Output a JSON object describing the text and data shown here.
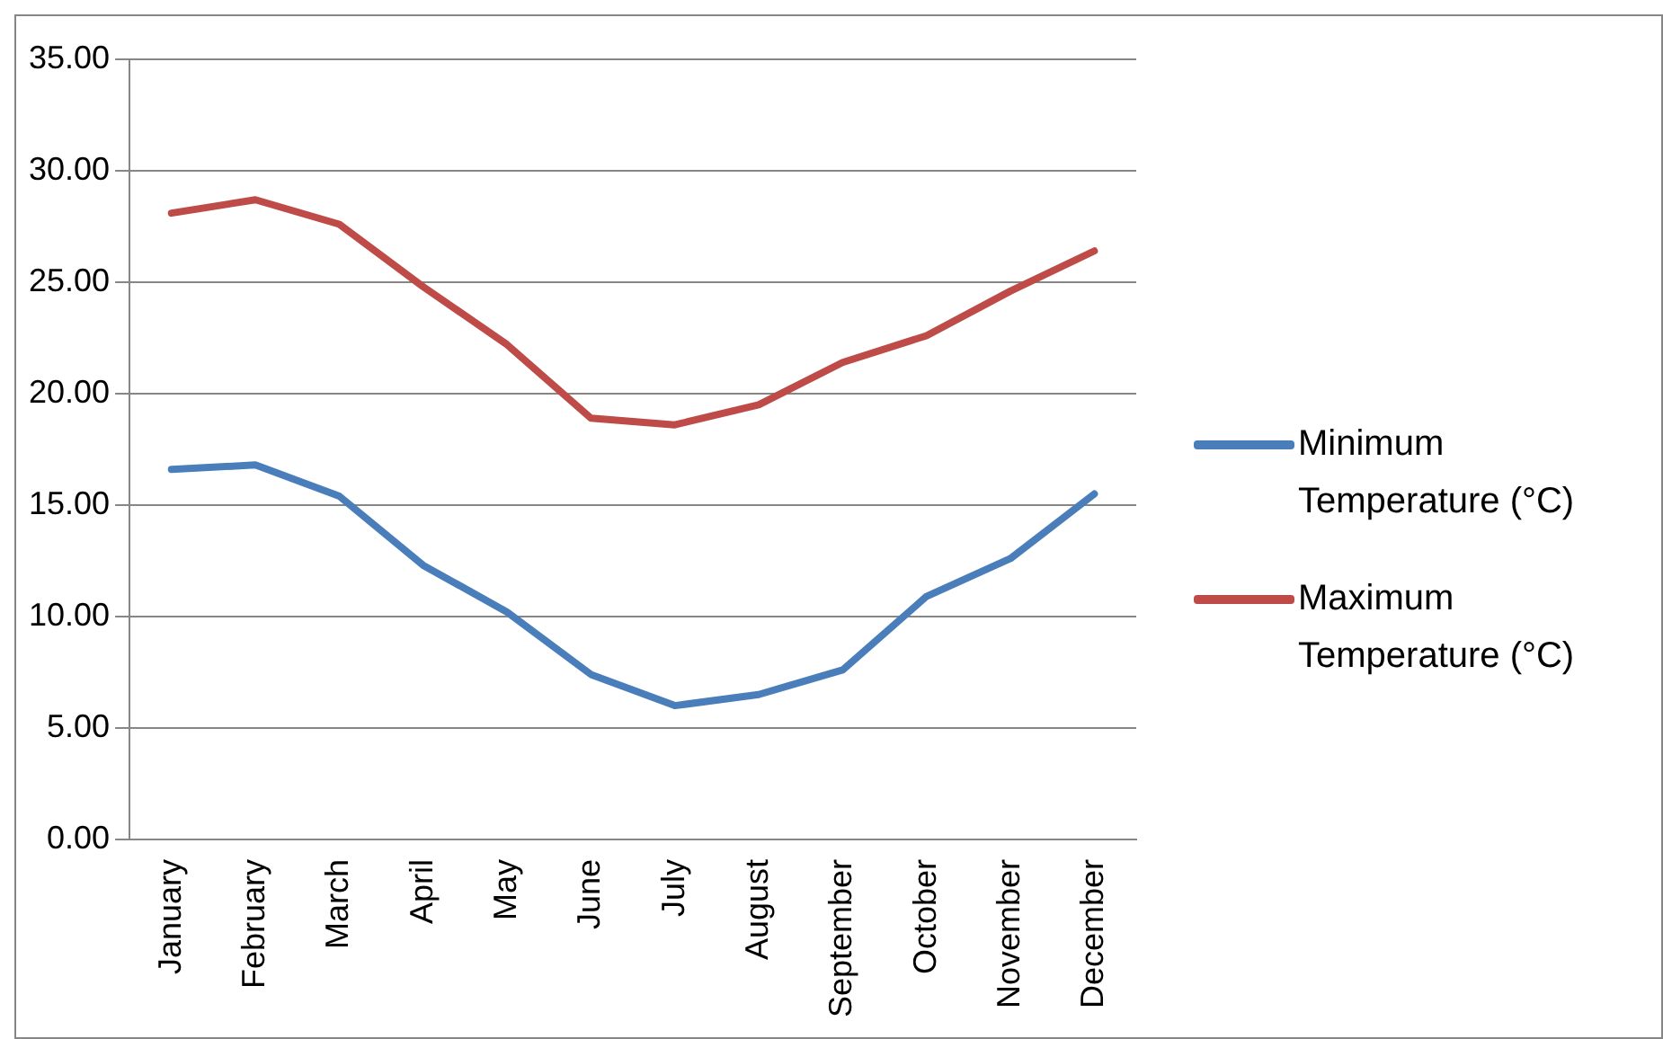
{
  "chart_data": {
    "type": "line",
    "categories": [
      "January",
      "February",
      "March",
      "April",
      "May",
      "June",
      "July",
      "August",
      "September",
      "October",
      "November",
      "December"
    ],
    "series": [
      {
        "name": "Minimum Temperature (°C)",
        "color": "#4a7ebb",
        "values": [
          16.6,
          16.8,
          15.4,
          12.3,
          10.2,
          7.4,
          6.0,
          6.5,
          7.6,
          10.9,
          12.6,
          15.5
        ]
      },
      {
        "name": "Maximum Temperature (°C)",
        "color": "#be4b48",
        "values": [
          28.1,
          28.7,
          27.6,
          24.8,
          22.2,
          18.9,
          18.6,
          19.5,
          21.4,
          22.6,
          24.6,
          26.4
        ]
      }
    ],
    "ylim": [
      0,
      35
    ],
    "yticks": [
      {
        "value": 0,
        "label": "0.00"
      },
      {
        "value": 5,
        "label": "5.00"
      },
      {
        "value": 10,
        "label": "10.00"
      },
      {
        "value": 15,
        "label": "15.00"
      },
      {
        "value": 20,
        "label": "20.00"
      },
      {
        "value": 25,
        "label": "25.00"
      },
      {
        "value": 30,
        "label": "30.00"
      },
      {
        "value": 35,
        "label": "35.00"
      }
    ],
    "grid": "y",
    "legend": "right",
    "marker": "none"
  }
}
